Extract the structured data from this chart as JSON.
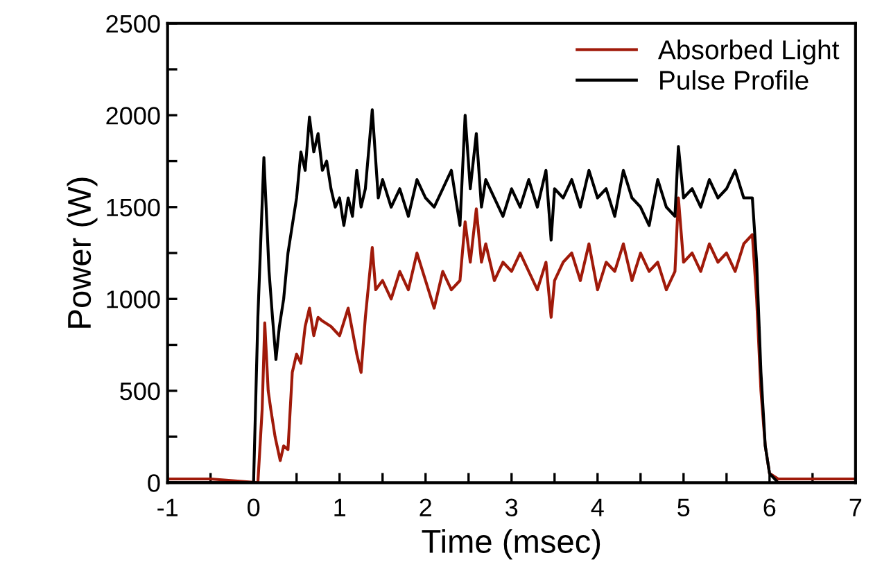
{
  "chart_data": {
    "type": "line",
    "xlabel": "Time (msec)",
    "ylabel": "Power (W)",
    "xlim": [
      -1,
      7
    ],
    "xticks": [
      -1,
      {
        "value": -0.5,
        "label": null
      },
      0,
      {
        "value": 0.5,
        "label": null
      },
      1,
      {
        "value": 1.5,
        "label": null
      },
      2,
      {
        "value": 2.5,
        "label": null
      },
      3,
      {
        "value": 3.5,
        "label": null
      },
      4,
      {
        "value": 4.5,
        "label": null
      },
      5,
      {
        "value": 5.5,
        "label": null
      },
      6,
      {
        "value": 6.5,
        "label": null
      },
      7
    ],
    "ylim": [
      0,
      2500
    ],
    "yticks": [
      0,
      {
        "value": 250,
        "label": null
      },
      500,
      {
        "value": 750,
        "label": null
      },
      1000,
      {
        "value": 1250,
        "label": null
      },
      1500,
      {
        "value": 1750,
        "label": null
      },
      2000,
      {
        "value": 2250,
        "label": null
      },
      2500
    ],
    "grid": false,
    "legend": "top right",
    "marker": "none",
    "line_style": "solid",
    "series": [
      {
        "name": "Absorbed Light",
        "color": "#a01a0a",
        "x": [
          -1,
          -0.5,
          0.05,
          0.1,
          0.13,
          0.17,
          0.2,
          0.25,
          0.31,
          0.35,
          0.4,
          0.45,
          0.5,
          0.55,
          0.6,
          0.65,
          0.7,
          0.75,
          0.8,
          0.9,
          1.0,
          1.1,
          1.2,
          1.25,
          1.3,
          1.38,
          1.42,
          1.5,
          1.6,
          1.7,
          1.8,
          1.9,
          2.0,
          2.1,
          2.2,
          2.3,
          2.4,
          2.46,
          2.52,
          2.59,
          2.65,
          2.7,
          2.8,
          2.9,
          3.0,
          3.1,
          3.2,
          3.3,
          3.4,
          3.46,
          3.5,
          3.6,
          3.7,
          3.8,
          3.9,
          4.0,
          4.1,
          4.2,
          4.3,
          4.4,
          4.5,
          4.6,
          4.7,
          4.8,
          4.9,
          4.94,
          5.0,
          5.1,
          5.2,
          5.3,
          5.4,
          5.5,
          5.6,
          5.7,
          5.8,
          5.85,
          5.9,
          5.95,
          6.0,
          6.1,
          6.5,
          7.0
        ],
        "values": [
          20,
          20,
          0,
          400,
          870,
          500,
          400,
          250,
          120,
          200,
          180,
          600,
          700,
          650,
          850,
          950,
          800,
          900,
          880,
          850,
          800,
          950,
          700,
          600,
          900,
          1280,
          1050,
          1100,
          1000,
          1150,
          1050,
          1250,
          1100,
          950,
          1150,
          1050,
          1100,
          1420,
          1200,
          1490,
          1200,
          1300,
          1100,
          1200,
          1150,
          1250,
          1150,
          1050,
          1200,
          900,
          1100,
          1200,
          1250,
          1100,
          1300,
          1050,
          1200,
          1150,
          1300,
          1100,
          1250,
          1150,
          1200,
          1050,
          1150,
          1550,
          1200,
          1250,
          1150,
          1300,
          1200,
          1250,
          1150,
          1300,
          1350,
          1000,
          500,
          200,
          50,
          20,
          20,
          20
        ]
      },
      {
        "name": "Pulse Profile",
        "color": "#000000",
        "x": [
          -1,
          -0.5,
          0.0,
          0.05,
          0.12,
          0.18,
          0.22,
          0.26,
          0.3,
          0.35,
          0.4,
          0.45,
          0.5,
          0.55,
          0.6,
          0.65,
          0.7,
          0.75,
          0.8,
          0.85,
          0.9,
          0.95,
          1.0,
          1.05,
          1.1,
          1.15,
          1.2,
          1.25,
          1.3,
          1.38,
          1.45,
          1.5,
          1.6,
          1.7,
          1.8,
          1.9,
          2.0,
          2.1,
          2.2,
          2.3,
          2.4,
          2.46,
          2.52,
          2.59,
          2.65,
          2.7,
          2.8,
          2.9,
          3.0,
          3.1,
          3.2,
          3.3,
          3.4,
          3.46,
          3.5,
          3.6,
          3.7,
          3.8,
          3.9,
          4.0,
          4.1,
          4.2,
          4.3,
          4.4,
          4.5,
          4.6,
          4.7,
          4.8,
          4.9,
          4.94,
          5.0,
          5.1,
          5.2,
          5.3,
          5.4,
          5.5,
          5.6,
          5.7,
          5.8,
          5.85,
          5.9,
          5.95,
          6.0,
          6.1,
          6.5,
          7.0
        ],
        "values": [
          0,
          0,
          0,
          900,
          1770,
          1150,
          900,
          670,
          850,
          1000,
          1250,
          1400,
          1550,
          1800,
          1700,
          1990,
          1800,
          1900,
          1700,
          1750,
          1600,
          1500,
          1550,
          1400,
          1550,
          1450,
          1700,
          1500,
          1600,
          2030,
          1550,
          1650,
          1500,
          1600,
          1450,
          1650,
          1550,
          1500,
          1600,
          1700,
          1400,
          2000,
          1600,
          1900,
          1500,
          1650,
          1550,
          1450,
          1600,
          1500,
          1650,
          1500,
          1700,
          1320,
          1600,
          1550,
          1650,
          1500,
          1700,
          1550,
          1600,
          1450,
          1700,
          1550,
          1500,
          1400,
          1650,
          1500,
          1450,
          1830,
          1550,
          1600,
          1500,
          1650,
          1550,
          1600,
          1700,
          1550,
          1550,
          1200,
          600,
          200,
          50,
          0,
          0,
          0
        ]
      }
    ]
  }
}
